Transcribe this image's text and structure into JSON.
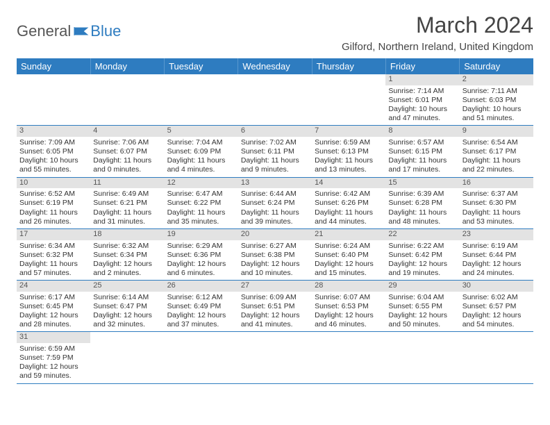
{
  "logo": {
    "text1": "General",
    "text2": "Blue",
    "flag_color": "#2e7cc0"
  },
  "title": "March 2024",
  "location": "Gilford, Northern Ireland, United Kingdom",
  "colors": {
    "header_bg": "#2e7cc0",
    "header_text": "#ffffff",
    "daynum_bg": "#e3e3e3",
    "row_border": "#2e7cc0",
    "text": "#333333"
  },
  "weekdays": [
    "Sunday",
    "Monday",
    "Tuesday",
    "Wednesday",
    "Thursday",
    "Friday",
    "Saturday"
  ],
  "weeks": [
    [
      null,
      null,
      null,
      null,
      null,
      {
        "n": "1",
        "sr": "Sunrise: 7:14 AM",
        "ss": "Sunset: 6:01 PM",
        "d1": "Daylight: 10 hours",
        "d2": "and 47 minutes."
      },
      {
        "n": "2",
        "sr": "Sunrise: 7:11 AM",
        "ss": "Sunset: 6:03 PM",
        "d1": "Daylight: 10 hours",
        "d2": "and 51 minutes."
      }
    ],
    [
      {
        "n": "3",
        "sr": "Sunrise: 7:09 AM",
        "ss": "Sunset: 6:05 PM",
        "d1": "Daylight: 10 hours",
        "d2": "and 55 minutes."
      },
      {
        "n": "4",
        "sr": "Sunrise: 7:06 AM",
        "ss": "Sunset: 6:07 PM",
        "d1": "Daylight: 11 hours",
        "d2": "and 0 minutes."
      },
      {
        "n": "5",
        "sr": "Sunrise: 7:04 AM",
        "ss": "Sunset: 6:09 PM",
        "d1": "Daylight: 11 hours",
        "d2": "and 4 minutes."
      },
      {
        "n": "6",
        "sr": "Sunrise: 7:02 AM",
        "ss": "Sunset: 6:11 PM",
        "d1": "Daylight: 11 hours",
        "d2": "and 9 minutes."
      },
      {
        "n": "7",
        "sr": "Sunrise: 6:59 AM",
        "ss": "Sunset: 6:13 PM",
        "d1": "Daylight: 11 hours",
        "d2": "and 13 minutes."
      },
      {
        "n": "8",
        "sr": "Sunrise: 6:57 AM",
        "ss": "Sunset: 6:15 PM",
        "d1": "Daylight: 11 hours",
        "d2": "and 17 minutes."
      },
      {
        "n": "9",
        "sr": "Sunrise: 6:54 AM",
        "ss": "Sunset: 6:17 PM",
        "d1": "Daylight: 11 hours",
        "d2": "and 22 minutes."
      }
    ],
    [
      {
        "n": "10",
        "sr": "Sunrise: 6:52 AM",
        "ss": "Sunset: 6:19 PM",
        "d1": "Daylight: 11 hours",
        "d2": "and 26 minutes."
      },
      {
        "n": "11",
        "sr": "Sunrise: 6:49 AM",
        "ss": "Sunset: 6:21 PM",
        "d1": "Daylight: 11 hours",
        "d2": "and 31 minutes."
      },
      {
        "n": "12",
        "sr": "Sunrise: 6:47 AM",
        "ss": "Sunset: 6:22 PM",
        "d1": "Daylight: 11 hours",
        "d2": "and 35 minutes."
      },
      {
        "n": "13",
        "sr": "Sunrise: 6:44 AM",
        "ss": "Sunset: 6:24 PM",
        "d1": "Daylight: 11 hours",
        "d2": "and 39 minutes."
      },
      {
        "n": "14",
        "sr": "Sunrise: 6:42 AM",
        "ss": "Sunset: 6:26 PM",
        "d1": "Daylight: 11 hours",
        "d2": "and 44 minutes."
      },
      {
        "n": "15",
        "sr": "Sunrise: 6:39 AM",
        "ss": "Sunset: 6:28 PM",
        "d1": "Daylight: 11 hours",
        "d2": "and 48 minutes."
      },
      {
        "n": "16",
        "sr": "Sunrise: 6:37 AM",
        "ss": "Sunset: 6:30 PM",
        "d1": "Daylight: 11 hours",
        "d2": "and 53 minutes."
      }
    ],
    [
      {
        "n": "17",
        "sr": "Sunrise: 6:34 AM",
        "ss": "Sunset: 6:32 PM",
        "d1": "Daylight: 11 hours",
        "d2": "and 57 minutes."
      },
      {
        "n": "18",
        "sr": "Sunrise: 6:32 AM",
        "ss": "Sunset: 6:34 PM",
        "d1": "Daylight: 12 hours",
        "d2": "and 2 minutes."
      },
      {
        "n": "19",
        "sr": "Sunrise: 6:29 AM",
        "ss": "Sunset: 6:36 PM",
        "d1": "Daylight: 12 hours",
        "d2": "and 6 minutes."
      },
      {
        "n": "20",
        "sr": "Sunrise: 6:27 AM",
        "ss": "Sunset: 6:38 PM",
        "d1": "Daylight: 12 hours",
        "d2": "and 10 minutes."
      },
      {
        "n": "21",
        "sr": "Sunrise: 6:24 AM",
        "ss": "Sunset: 6:40 PM",
        "d1": "Daylight: 12 hours",
        "d2": "and 15 minutes."
      },
      {
        "n": "22",
        "sr": "Sunrise: 6:22 AM",
        "ss": "Sunset: 6:42 PM",
        "d1": "Daylight: 12 hours",
        "d2": "and 19 minutes."
      },
      {
        "n": "23",
        "sr": "Sunrise: 6:19 AM",
        "ss": "Sunset: 6:44 PM",
        "d1": "Daylight: 12 hours",
        "d2": "and 24 minutes."
      }
    ],
    [
      {
        "n": "24",
        "sr": "Sunrise: 6:17 AM",
        "ss": "Sunset: 6:45 PM",
        "d1": "Daylight: 12 hours",
        "d2": "and 28 minutes."
      },
      {
        "n": "25",
        "sr": "Sunrise: 6:14 AM",
        "ss": "Sunset: 6:47 PM",
        "d1": "Daylight: 12 hours",
        "d2": "and 32 minutes."
      },
      {
        "n": "26",
        "sr": "Sunrise: 6:12 AM",
        "ss": "Sunset: 6:49 PM",
        "d1": "Daylight: 12 hours",
        "d2": "and 37 minutes."
      },
      {
        "n": "27",
        "sr": "Sunrise: 6:09 AM",
        "ss": "Sunset: 6:51 PM",
        "d1": "Daylight: 12 hours",
        "d2": "and 41 minutes."
      },
      {
        "n": "28",
        "sr": "Sunrise: 6:07 AM",
        "ss": "Sunset: 6:53 PM",
        "d1": "Daylight: 12 hours",
        "d2": "and 46 minutes."
      },
      {
        "n": "29",
        "sr": "Sunrise: 6:04 AM",
        "ss": "Sunset: 6:55 PM",
        "d1": "Daylight: 12 hours",
        "d2": "and 50 minutes."
      },
      {
        "n": "30",
        "sr": "Sunrise: 6:02 AM",
        "ss": "Sunset: 6:57 PM",
        "d1": "Daylight: 12 hours",
        "d2": "and 54 minutes."
      }
    ],
    [
      {
        "n": "31",
        "sr": "Sunrise: 6:59 AM",
        "ss": "Sunset: 7:59 PM",
        "d1": "Daylight: 12 hours",
        "d2": "and 59 minutes."
      },
      null,
      null,
      null,
      null,
      null,
      null
    ]
  ]
}
